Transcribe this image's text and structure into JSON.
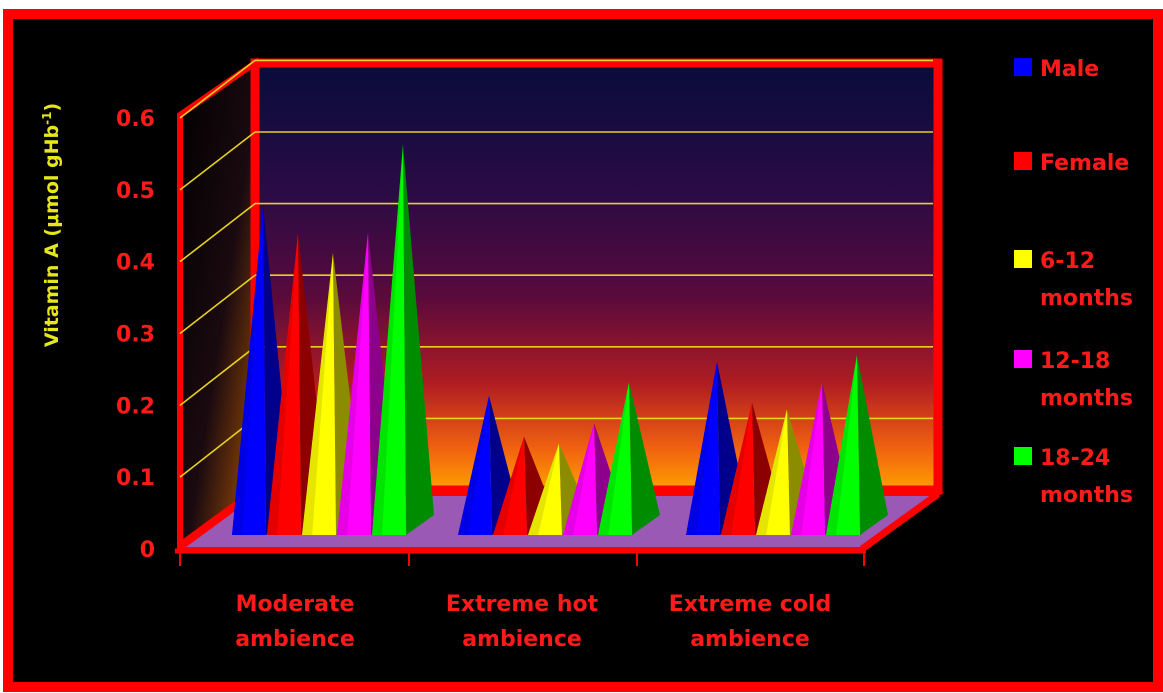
{
  "chart_data": {
    "type": "bar",
    "style": "3d-pyramid",
    "title": "",
    "xlabel": "",
    "ylabel": "Vitamin A (μmol gHb-1)",
    "ylabel_main": "Vitamin A (μmol gHb",
    "ylabel_sup": "-1",
    "ylabel_tail": ")",
    "ylim": [
      0,
      0.6
    ],
    "yticks": [
      "0",
      "0.1",
      "0.2",
      "0.3",
      "0.4",
      "0.5",
      "0.6"
    ],
    "grid": true,
    "legend_position": "right",
    "categories": [
      [
        "Moderate",
        "ambience"
      ],
      [
        "Extreme hot",
        "ambience"
      ],
      [
        "Extreme cold",
        "ambience"
      ]
    ],
    "series": [
      {
        "name": "Male",
        "name_lines": [
          "Male"
        ],
        "color": "#0000ff",
        "values": [
          0.47,
          0.19,
          0.24
        ]
      },
      {
        "name": "Female",
        "name_lines": [
          "Female"
        ],
        "color": "#ff0000",
        "values": [
          0.43,
          0.13,
          0.18
        ]
      },
      {
        "name": "6-12 months",
        "name_lines": [
          "6-12",
          "months"
        ],
        "color": "#ffff00",
        "values": [
          0.4,
          0.12,
          0.17
        ]
      },
      {
        "name": "12-18 months",
        "name_lines": [
          "12-18",
          "months"
        ],
        "color": "#ff00ff",
        "values": [
          0.43,
          0.15,
          0.21
        ]
      },
      {
        "name": "18-24 months",
        "name_lines": [
          "18-24",
          "months"
        ],
        "color": "#00ff00",
        "values": [
          0.56,
          0.21,
          0.25
        ]
      }
    ],
    "colors": {
      "background": "#000000",
      "frame": "#ff0000",
      "floor": "#9b59b6",
      "gridline": "#e6d21e",
      "axis_text": "#ff1a1a",
      "ylabel_text": "#e6e61e"
    }
  }
}
